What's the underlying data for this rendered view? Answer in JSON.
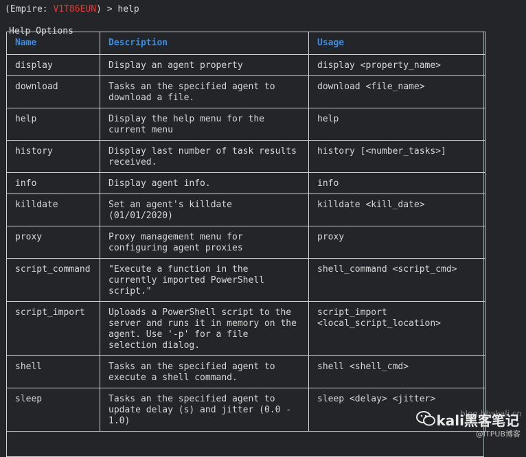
{
  "prompt": {
    "prefix": "(Empire: ",
    "agent": "V1T86EUN",
    "suffix": ") > help"
  },
  "panel": {
    "title": "Help Options"
  },
  "table": {
    "headers": [
      "Name",
      "Description",
      "Usage"
    ],
    "rows": [
      {
        "name": "display",
        "description": "Display an agent property",
        "usage": "display <property_name>"
      },
      {
        "name": "download",
        "description": "Tasks an the specified agent to\ndownload a file.",
        "usage": "download <file_name>"
      },
      {
        "name": "help",
        "description": "Display the help menu for the\ncurrent menu",
        "usage": "help"
      },
      {
        "name": "history",
        "description": "Display last number of task results\nreceived.",
        "usage": "history [<number_tasks>]"
      },
      {
        "name": "info",
        "description": "Display agent info.",
        "usage": "info"
      },
      {
        "name": "killdate",
        "description": "Set an agent's killdate\n(01/01/2020)",
        "usage": "killdate <kill_date>"
      },
      {
        "name": "proxy",
        "description": "Proxy management menu for\nconfiguring agent proxies",
        "usage": "proxy"
      },
      {
        "name": "script_command",
        "description": "\"Execute a function in the\ncurrently imported PowerShell\nscript.\"",
        "usage": "shell_command <script_cmd>"
      },
      {
        "name": "script_import",
        "description": "Uploads a PowerShell script to the\nserver and runs it in memory on the\nagent. Use '-p' for a file\nselection dialog.",
        "usage": "script_import\n<local_script_location>"
      },
      {
        "name": "shell",
        "description": "Tasks an the specified agent to\nexecute a shell command.",
        "usage": "shell <shell_cmd>"
      },
      {
        "name": "sleep",
        "description": "Tasks an the specified agent to\nupdate delay (s) and jitter (0.0 -\n1.0)",
        "usage": "sleep <delay> <jitter>"
      }
    ]
  },
  "watermark": {
    "main": "kali黑客笔记",
    "sub": "@ITPUB博客",
    "site": "blog.bbskali.cn"
  }
}
